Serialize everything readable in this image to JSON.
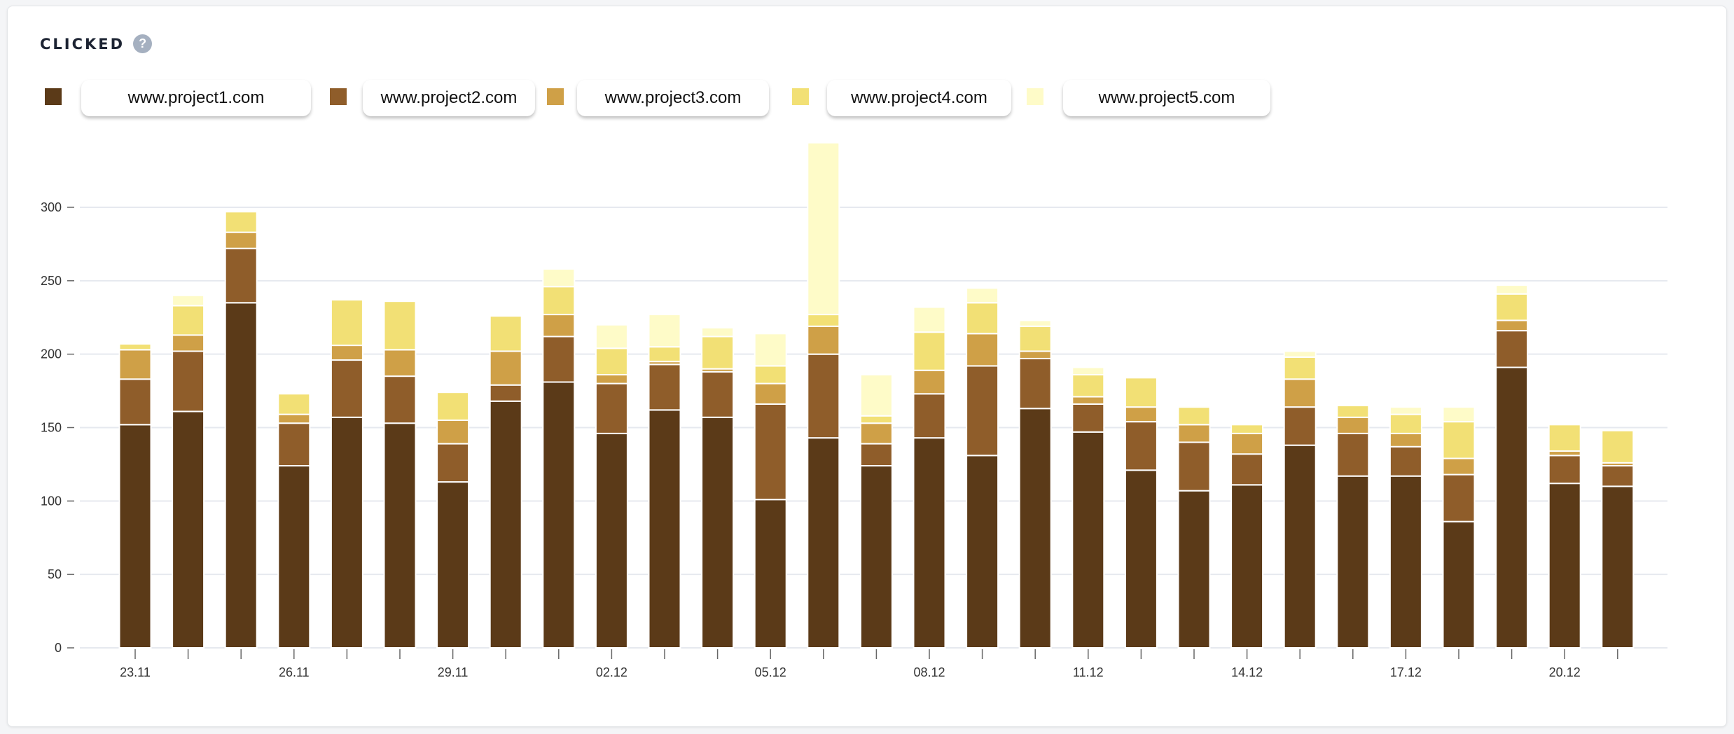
{
  "header": {
    "title": "CLICKED",
    "help_icon": "question-circle-icon",
    "help_glyph": "?"
  },
  "chart_data": {
    "type": "bar",
    "stacked": true,
    "title": "CLICKED",
    "xlabel": "",
    "ylabel": "",
    "ylim": [
      0,
      350
    ],
    "yticks": [
      0,
      50,
      100,
      150,
      200,
      250,
      300
    ],
    "grid": true,
    "legend_position": "top-left",
    "categories": [
      "23.11",
      "24.11",
      "25.11",
      "26.11",
      "27.11",
      "28.11",
      "29.11",
      "30.11",
      "01.12",
      "02.12",
      "03.12",
      "04.12",
      "05.12",
      "06.12",
      "07.12",
      "08.12",
      "09.12",
      "10.12",
      "11.12",
      "12.12",
      "13.12",
      "14.12",
      "15.12",
      "16.12",
      "17.12",
      "18.12",
      "19.12",
      "20.12",
      "21.12"
    ],
    "labeled_ticks": [
      "23.11",
      "26.11",
      "29.11",
      "02.12",
      "05.12",
      "08.12",
      "11.12",
      "14.12",
      "17.12",
      "20.12"
    ],
    "series": [
      {
        "name": "www.project1.com",
        "color": "#5b3a18",
        "values": [
          152,
          161,
          235,
          124,
          157,
          153,
          113,
          168,
          181,
          146,
          162,
          157,
          101,
          143,
          124,
          143,
          131,
          163,
          147,
          121,
          107,
          111,
          138,
          117,
          117,
          86,
          191,
          112,
          110
        ]
      },
      {
        "name": "www.project2.com",
        "color": "#8f5d2a",
        "values": [
          31,
          41,
          37,
          29,
          39,
          32,
          26,
          11,
          31,
          34,
          31,
          31,
          65,
          57,
          15,
          30,
          61,
          34,
          19,
          33,
          33,
          21,
          26,
          29,
          20,
          32,
          25,
          19,
          14
        ]
      },
      {
        "name": "www.project3.com",
        "color": "#cfa047",
        "values": [
          20,
          11,
          11,
          6,
          10,
          18,
          16,
          23,
          15,
          6,
          2,
          2,
          14,
          19,
          14,
          16,
          22,
          5,
          5,
          10,
          12,
          14,
          19,
          11,
          9,
          11,
          7,
          3,
          2
        ]
      },
      {
        "name": "www.project4.com",
        "color": "#f2e075",
        "values": [
          4,
          20,
          14,
          14,
          31,
          33,
          19,
          24,
          19,
          18,
          10,
          22,
          12,
          8,
          5,
          26,
          21,
          17,
          15,
          20,
          12,
          6,
          15,
          8,
          13,
          25,
          18,
          18,
          22
        ]
      },
      {
        "name": "www.project5.com",
        "color": "#fefbc8",
        "values": [
          0,
          7,
          0,
          0,
          0,
          0,
          0,
          0,
          12,
          16,
          22,
          6,
          22,
          117,
          28,
          17,
          10,
          4,
          5,
          1,
          1,
          0,
          4,
          0,
          5,
          10,
          6,
          0,
          1
        ]
      }
    ]
  }
}
